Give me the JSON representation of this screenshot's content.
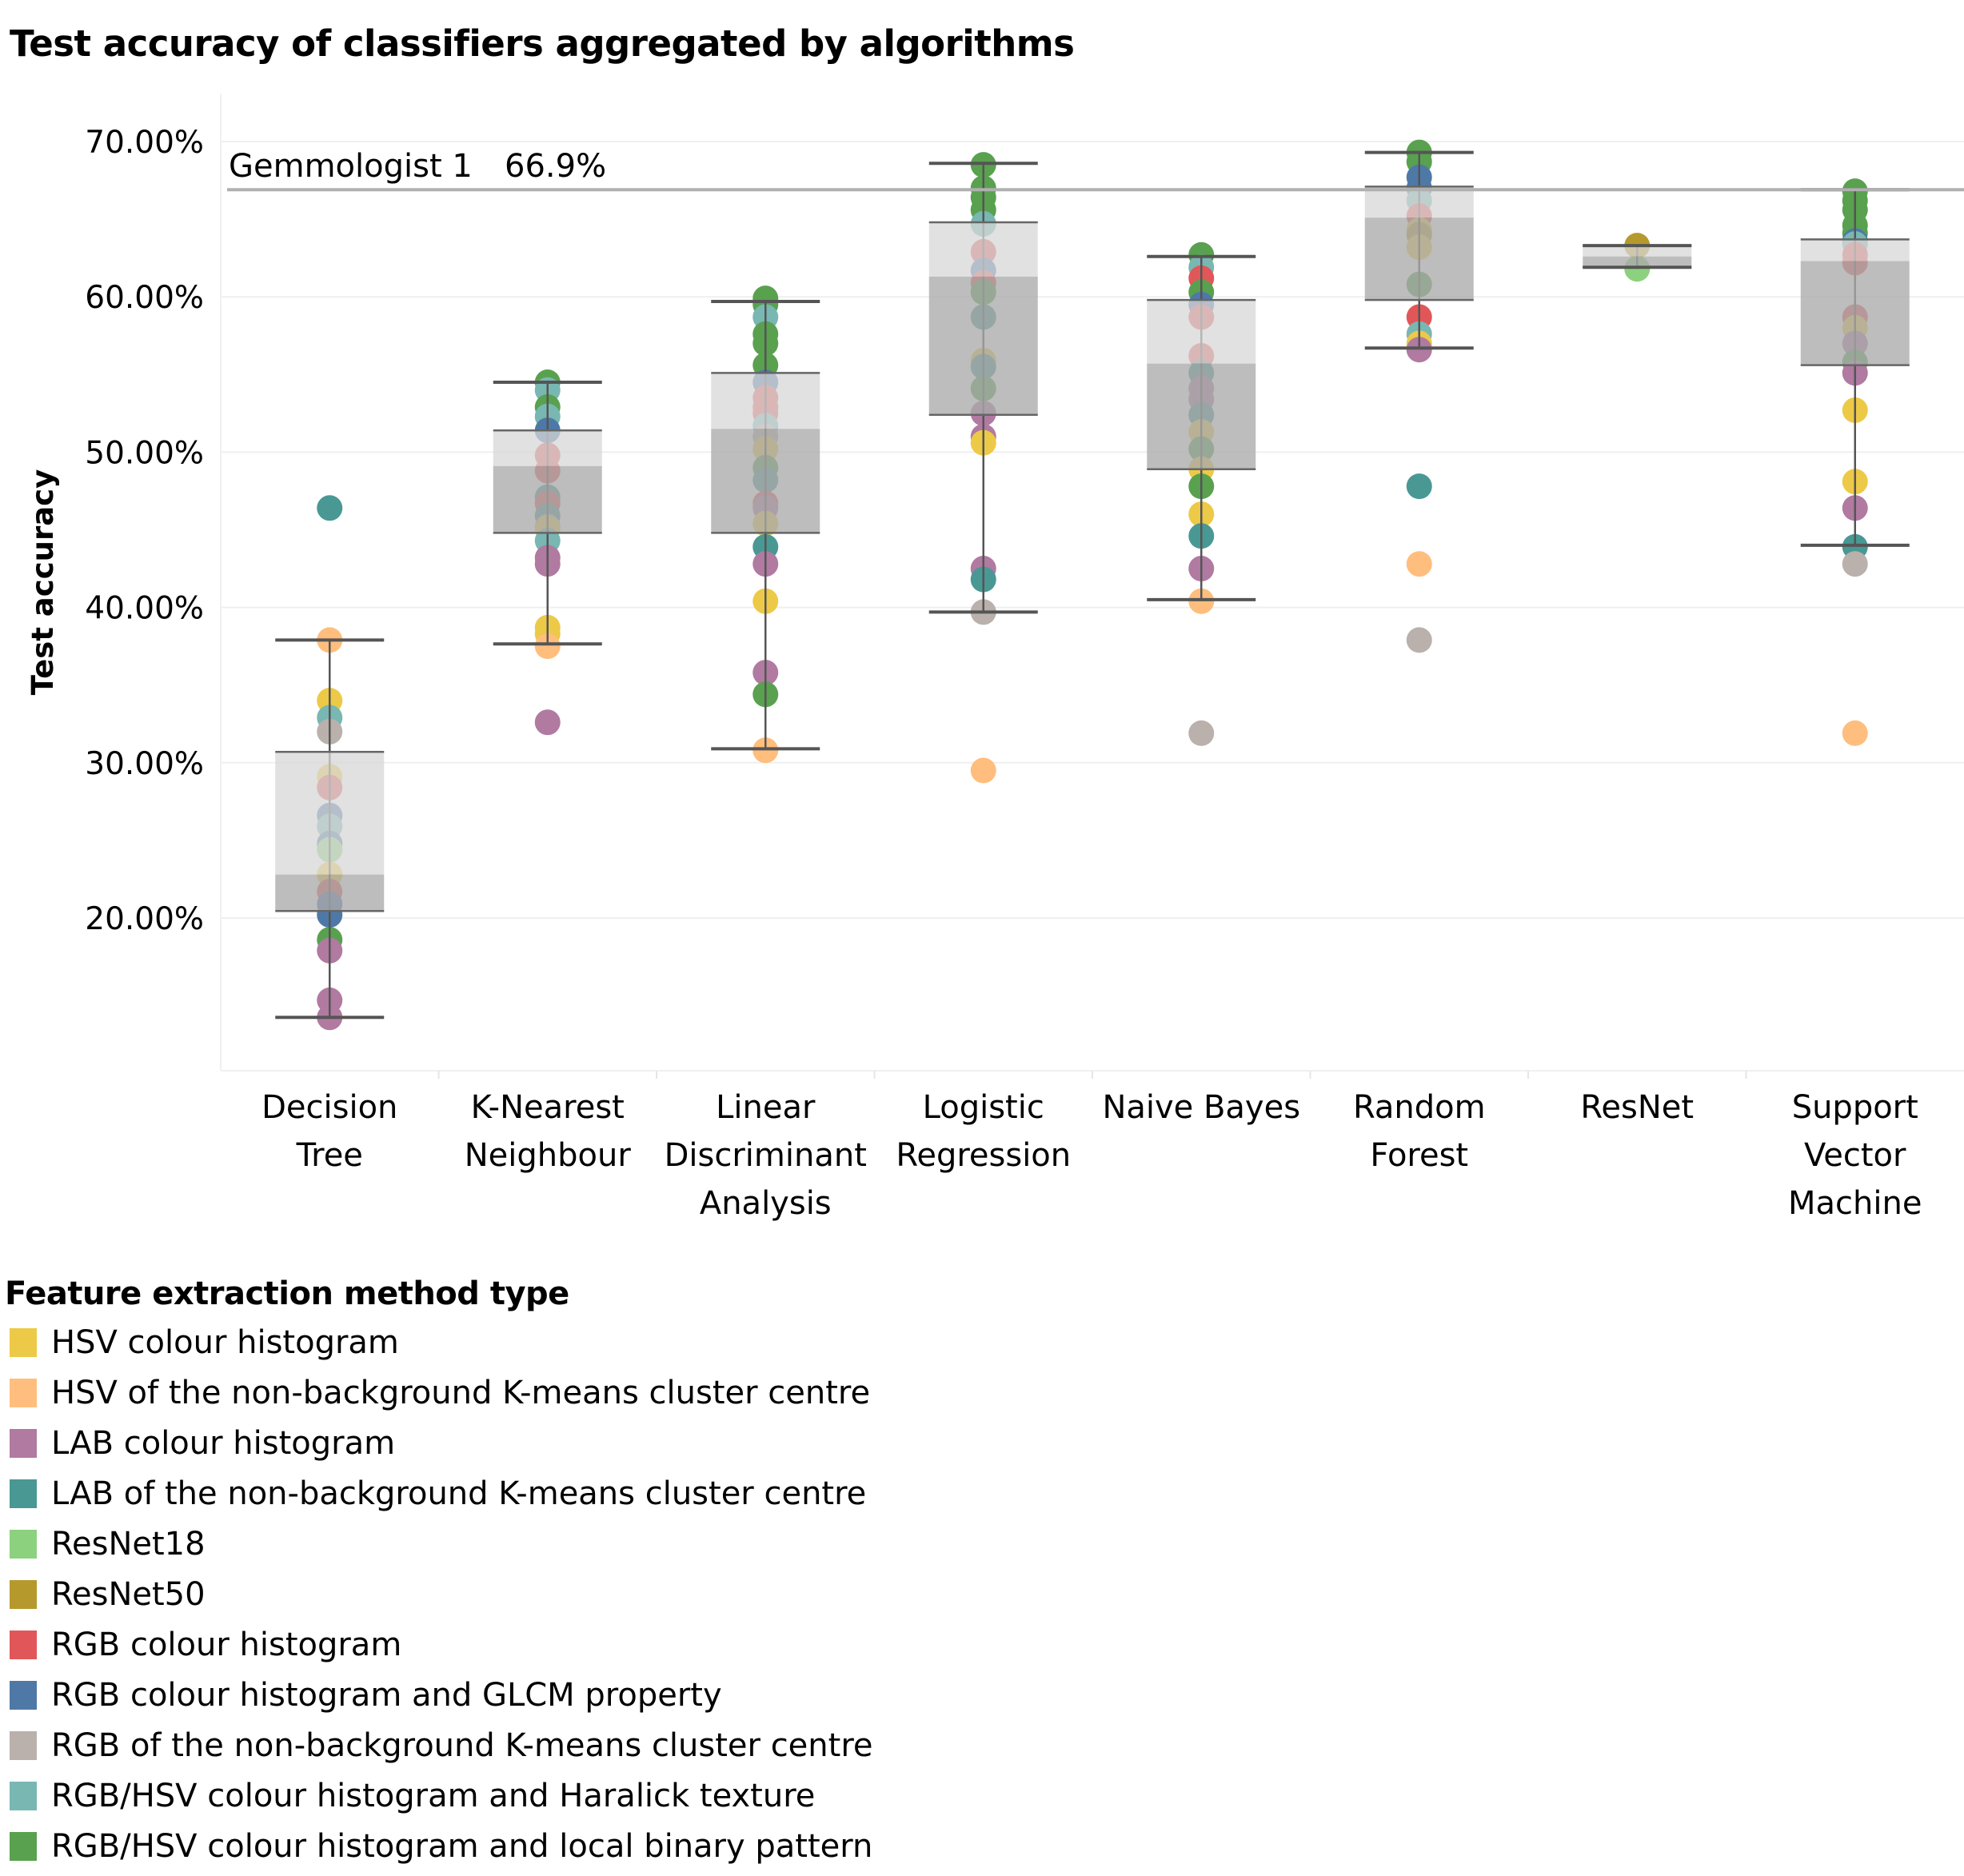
{
  "chart_data": {
    "type": "box-and-dot",
    "title": "Test accuracy of classifiers aggregated by algorithms",
    "ylabel": "Test accuracy",
    "xlabel": "",
    "ylim": [
      10,
      72
    ],
    "yticks": [
      20,
      30,
      40,
      50,
      60,
      70
    ],
    "ytick_labels": [
      "20.00%",
      "30.00%",
      "40.00%",
      "50.00%",
      "60.00%",
      "70.00%"
    ],
    "grid": true,
    "reference_line": {
      "label": "Gemmologist 1",
      "value_label": "66.9%",
      "value": 66.9,
      "color": "#b0b0b0"
    },
    "legend": {
      "title": "Feature extraction method type",
      "placement": "bottom-left"
    },
    "series": [
      {
        "name": "HSV colour histogram",
        "color": "#EDC948"
      },
      {
        "name": "HSV of the non-background K-means cluster centre",
        "color": "#FFBE7D"
      },
      {
        "name": "LAB colour histogram",
        "color": "#B07AA1"
      },
      {
        "name": "LAB of the non-background K-means cluster centre",
        "color": "#499894"
      },
      {
        "name": "ResNet18",
        "color": "#8CD17D"
      },
      {
        "name": "ResNet50",
        "color": "#B6992D"
      },
      {
        "name": "RGB colour histogram",
        "color": "#E15759"
      },
      {
        "name": "RGB colour histogram and GLCM property",
        "color": "#4E79A7"
      },
      {
        "name": "RGB of the non-background K-means cluster centre",
        "color": "#BAB0AC"
      },
      {
        "name": "RGB/HSV colour histogram and Haralick texture",
        "color": "#79B7B2"
      },
      {
        "name": "RGB/HSV colour histogram and local binary pattern",
        "color": "#59A14F"
      }
    ],
    "categories": [
      {
        "label": [
          "Decision",
          "Tree"
        ],
        "box": {
          "whisker_low": 13.6,
          "q1": 20.45,
          "median": 22.8,
          "q3": 30.7,
          "whisker_high": 37.9
        },
        "points": [
          [
            3,
            46.4
          ],
          [
            1,
            37.9
          ],
          [
            0,
            34.0
          ],
          [
            9,
            32.9
          ],
          [
            8,
            32.0
          ],
          [
            0,
            29.1
          ],
          [
            6,
            28.4
          ],
          [
            7,
            26.6
          ],
          [
            9,
            25.9
          ],
          [
            7,
            24.8
          ],
          [
            4,
            24.4
          ],
          [
            0,
            22.8
          ],
          [
            6,
            21.7
          ],
          [
            7,
            20.9
          ],
          [
            7,
            20.2
          ],
          [
            10,
            18.6
          ],
          [
            2,
            17.9
          ],
          [
            2,
            14.7
          ],
          [
            2,
            13.6
          ]
        ]
      },
      {
        "label": [
          "K-Nearest",
          "Neighbour"
        ],
        "box": {
          "whisker_low": 37.65,
          "q1": 44.8,
          "median": 49.1,
          "q3": 51.4,
          "whisker_high": 54.5
        },
        "points": [
          [
            10,
            54.5
          ],
          [
            9,
            54.0
          ],
          [
            10,
            52.9
          ],
          [
            9,
            52.3
          ],
          [
            7,
            51.4
          ],
          [
            6,
            49.8
          ],
          [
            6,
            48.8
          ],
          [
            3,
            47.1
          ],
          [
            6,
            46.7
          ],
          [
            3,
            45.9
          ],
          [
            8,
            45.2
          ],
          [
            0,
            45.1
          ],
          [
            9,
            44.3
          ],
          [
            2,
            43.2
          ],
          [
            2,
            42.8
          ],
          [
            0,
            38.7
          ],
          [
            0,
            38.3
          ],
          [
            1,
            37.5
          ],
          [
            2,
            32.6
          ]
        ]
      },
      {
        "label": [
          "Linear",
          "Discriminant",
          "Analysis"
        ],
        "box": {
          "whisker_low": 30.9,
          "q1": 44.8,
          "median": 51.5,
          "q3": 55.1,
          "whisker_high": 59.7
        },
        "points": [
          [
            10,
            59.9
          ],
          [
            10,
            59.5
          ],
          [
            9,
            58.7
          ],
          [
            10,
            57.6
          ],
          [
            10,
            57.0
          ],
          [
            10,
            55.6
          ],
          [
            7,
            54.5
          ],
          [
            6,
            53.5
          ],
          [
            6,
            52.9
          ],
          [
            6,
            52.5
          ],
          [
            9,
            51.7
          ],
          [
            8,
            51.0
          ],
          [
            0,
            50.2
          ],
          [
            10,
            49.0
          ],
          [
            3,
            48.2
          ],
          [
            6,
            46.7
          ],
          [
            2,
            46.4
          ],
          [
            0,
            45.4
          ],
          [
            3,
            43.9
          ],
          [
            2,
            42.8
          ],
          [
            0,
            40.4
          ],
          [
            2,
            35.8
          ],
          [
            10,
            34.4
          ],
          [
            1,
            30.8
          ]
        ]
      },
      {
        "label": [
          "Logistic",
          "Regression"
        ],
        "box": {
          "whisker_low": 39.7,
          "q1": 52.4,
          "median": 61.3,
          "q3": 64.8,
          "whisker_high": 68.6
        },
        "points": [
          [
            10,
            68.5
          ],
          [
            10,
            67.0
          ],
          [
            10,
            66.4
          ],
          [
            10,
            65.6
          ],
          [
            9,
            64.7
          ],
          [
            6,
            62.9
          ],
          [
            7,
            61.7
          ],
          [
            6,
            60.9
          ],
          [
            10,
            60.3
          ],
          [
            3,
            58.7
          ],
          [
            0,
            55.9
          ],
          [
            3,
            55.5
          ],
          [
            10,
            54.1
          ],
          [
            2,
            52.5
          ],
          [
            2,
            51.0
          ],
          [
            0,
            50.6
          ],
          [
            2,
            42.5
          ],
          [
            3,
            41.8
          ],
          [
            8,
            39.7
          ],
          [
            1,
            29.5
          ]
        ]
      },
      {
        "label": [
          "Naive Bayes"
        ],
        "box": {
          "whisker_low": 40.5,
          "q1": 48.9,
          "median": 55.7,
          "q3": 59.8,
          "whisker_high": 62.6
        },
        "points": [
          [
            10,
            62.7
          ],
          [
            9,
            61.9
          ],
          [
            6,
            61.2
          ],
          [
            10,
            60.3
          ],
          [
            7,
            59.5
          ],
          [
            6,
            58.7
          ],
          [
            6,
            56.2
          ],
          [
            3,
            55.1
          ],
          [
            2,
            54.1
          ],
          [
            2,
            53.4
          ],
          [
            3,
            52.4
          ],
          [
            0,
            51.3
          ],
          [
            10,
            50.2
          ],
          [
            0,
            48.9
          ],
          [
            10,
            47.8
          ],
          [
            0,
            46.0
          ],
          [
            3,
            44.6
          ],
          [
            2,
            42.5
          ],
          [
            1,
            40.4
          ],
          [
            8,
            31.9
          ]
        ]
      },
      {
        "label": [
          "Random",
          "Forest"
        ],
        "box": {
          "whisker_low": 56.7,
          "q1": 59.8,
          "median": 65.1,
          "q3": 67.1,
          "whisker_high": 69.3
        },
        "points": [
          [
            10,
            69.3
          ],
          [
            10,
            68.7
          ],
          [
            7,
            67.7
          ],
          [
            7,
            67.0
          ],
          [
            9,
            66.2
          ],
          [
            6,
            65.2
          ],
          [
            0,
            64.3
          ],
          [
            5,
            64.0
          ],
          [
            0,
            63.2
          ],
          [
            10,
            60.8
          ],
          [
            6,
            58.7
          ],
          [
            9,
            57.6
          ],
          [
            0,
            57.0
          ],
          [
            2,
            56.6
          ],
          [
            3,
            47.8
          ],
          [
            1,
            42.8
          ],
          [
            8,
            37.9
          ]
        ]
      },
      {
        "label": [
          "ResNet"
        ],
        "box": {
          "whisker_low": 61.9,
          "q1": 61.9,
          "median": 62.6,
          "q3": 63.3,
          "whisker_high": 63.3
        },
        "points": [
          [
            5,
            63.3
          ],
          [
            4,
            61.8
          ]
        ]
      },
      {
        "label": [
          "Support",
          "Vector",
          "Machine"
        ],
        "box": {
          "whisker_low": 44.0,
          "q1": 55.6,
          "median": 62.3,
          "q3": 63.7,
          "whisker_high": 66.9
        },
        "points": [
          [
            10,
            66.8
          ],
          [
            10,
            66.2
          ],
          [
            10,
            65.6
          ],
          [
            10,
            64.6
          ],
          [
            10,
            64.1
          ],
          [
            7,
            63.6
          ],
          [
            9,
            63.4
          ],
          [
            6,
            62.7
          ],
          [
            6,
            62.2
          ],
          [
            6,
            58.7
          ],
          [
            0,
            58.0
          ],
          [
            2,
            57.0
          ],
          [
            10,
            55.8
          ],
          [
            2,
            55.1
          ],
          [
            0,
            52.7
          ],
          [
            0,
            48.1
          ],
          [
            2,
            46.4
          ],
          [
            3,
            43.9
          ],
          [
            8,
            42.8
          ],
          [
            1,
            31.9
          ]
        ]
      }
    ]
  }
}
